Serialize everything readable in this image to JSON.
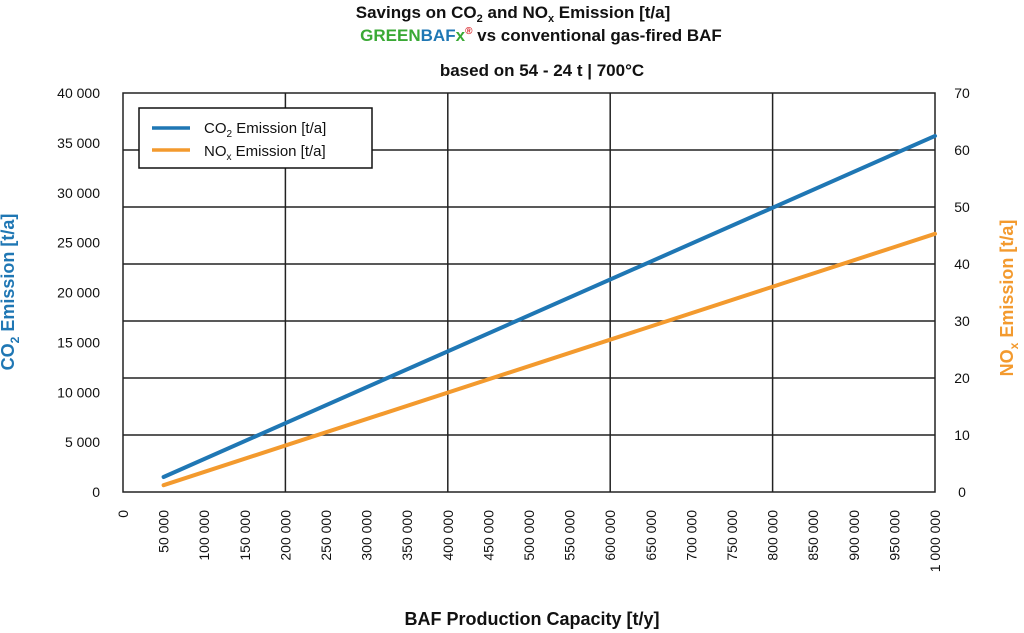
{
  "title": {
    "line1_a": "Savings on CO",
    "line1_sub1": "2",
    "line1_b": " and NO",
    "line1_sub2": "x",
    "line1_c": " Emission [t/a]",
    "brand_green": "GREEN",
    "brand_blue": "BAF",
    "brand_green2": "x",
    "brand_reg": "®",
    "line2_rest": " vs conventional gas-fired BAF",
    "line3": "based on 54 - 24 t | 700°C"
  },
  "colors": {
    "co2": "#1f77b4",
    "nox": "#f39a2e",
    "green": "#3aa935",
    "blue": "#1f77b4"
  },
  "chart_data": {
    "type": "line",
    "x": [
      50000,
      1000000
    ],
    "xlabel": "BAF Production Capacity [t/y]",
    "xticks": [
      "0",
      "50 000",
      "100 000",
      "150 000",
      "200 000",
      "250 000",
      "300 000",
      "350 000",
      "400 000",
      "450 000",
      "500 000",
      "550 000",
      "600 000",
      "650 000",
      "700 000",
      "750 000",
      "800 000",
      "850 000",
      "900 000",
      "950 000",
      "1 000 000"
    ],
    "xlim": [
      0,
      1000000
    ],
    "y_left": {
      "label_a": "CO",
      "label_sub": "2",
      "label_b": " Emission [t/a]",
      "ticks": [
        "0",
        "5 000",
        "10 000",
        "15 000",
        "20 000",
        "25 000",
        "30 000",
        "35 000",
        "40 000"
      ],
      "lim": [
        0,
        40000
      ]
    },
    "y_right": {
      "label_a": "NO",
      "label_sub": "x",
      "label_b": " Emission [t/a]",
      "ticks": [
        "0",
        "10",
        "20",
        "30",
        "40",
        "50",
        "60",
        "70"
      ],
      "lim": [
        0,
        70
      ]
    },
    "series": [
      {
        "name_a": "CO",
        "name_sub": "2",
        "name_b": " Emission [t/a]",
        "axis": "left",
        "x": [
          50000,
          1000000
        ],
        "values": [
          1500,
          35700
        ]
      },
      {
        "name_a": "NO",
        "name_sub": "x",
        "name_b": " Emission [t/a]",
        "axis": "right",
        "x": [
          50000,
          1000000
        ],
        "values": [
          1.2,
          45.3
        ]
      }
    ],
    "grid": true,
    "legend_position": "top-left"
  }
}
